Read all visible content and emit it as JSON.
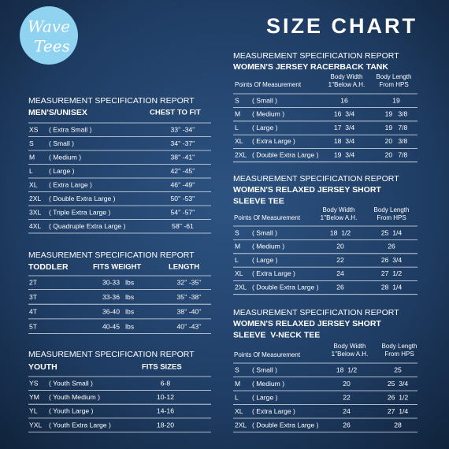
{
  "logo": [
    "Wave",
    "Tees"
  ],
  "title": "SIZE CHART",
  "tables": [
    {
      "report": "MEASUREMENT SPECIFICATION REPORT",
      "heading": [
        "MEN'S/UNISEX"
      ],
      "columns": [
        [
          "CHEST TO FIT"
        ]
      ],
      "rows": [
        [
          "XS",
          "( Extra Small )",
          "33'' -34''"
        ],
        [
          "S",
          "( Small )",
          "34'' -37''"
        ],
        [
          "M",
          "( Medium )",
          "38'' -41''"
        ],
        [
          "L",
          "( Large )",
          "42'' -45''"
        ],
        [
          "XL",
          "( Extra Large )",
          "46'' -49''"
        ],
        [
          "2XL",
          "( Double Extra Large )",
          "50'' -53''"
        ],
        [
          "3XL",
          "( Triple Extra Large )",
          "54'' -57''"
        ],
        [
          "4XL",
          "( Quadruple Extra Large )",
          "58'' -61"
        ]
      ]
    },
    {
      "report": "MEASUREMENT SPECIFICATION REPORT",
      "heading": [
        "TODDLER"
      ],
      "columns": [
        [
          "FITS WEIGHT"
        ],
        [
          "LENGTH"
        ]
      ],
      "rows": [
        [
          "2T",
          "30-33   lbs",
          "32'' -35''"
        ],
        [
          "3T",
          "33-36   lbs",
          "35'' -38''"
        ],
        [
          "4T",
          "36-40   lbs",
          "38'' -40''"
        ],
        [
          "5T",
          "40-45   lbs",
          "40'' -43''"
        ]
      ]
    },
    {
      "report": "MEASUREMENT SPECIFICATION REPORT",
      "heading": [
        "YOUTH"
      ],
      "columns": [
        [
          "FITS SIZES"
        ]
      ],
      "rows": [
        [
          "YS",
          "( Youth Small )",
          "6-8"
        ],
        [
          "YM",
          "( Youth Medium )",
          "10-12"
        ],
        [
          "YL",
          "( Youth Large )",
          "14-16"
        ],
        [
          "YXL",
          "( Youth Extra Large )",
          "18-20"
        ]
      ]
    },
    {
      "report": "MEASUREMENT SPECIFICATION REPORT",
      "heading": [
        "WOMEN'S JERSEY RACERBACK TANK"
      ],
      "columns": [
        [
          "Points Of Measurement"
        ],
        [
          "Body Width",
          "1''Below A.H."
        ],
        [
          "Body Length",
          "From HPS"
        ]
      ],
      "rows": [
        [
          "S",
          "( Small )",
          "16",
          "19"
        ],
        [
          "M",
          "( Medium )",
          "16  3/4",
          "19   3/8"
        ],
        [
          "L",
          "( Large )",
          "17  3/4",
          "19   7/8"
        ],
        [
          "XL",
          "( Extra Large )",
          "18  3/4",
          "20   3/8"
        ],
        [
          "2XL",
          "( Double Extra Large )",
          "19  3/4",
          "20   7/8"
        ]
      ]
    },
    {
      "report": "MEASUREMENT SPECIFICATION REPORT",
      "heading": [
        "WOMEN'S RELAXED JERSEY SHORT",
        "SLEEVE TEE"
      ],
      "columns": [
        [
          "Points Of Measurement"
        ],
        [
          "Body Width",
          "1''Below A.H."
        ],
        [
          "Body Length",
          "From HPS"
        ]
      ],
      "rows": [
        [
          "S",
          "( Small )",
          "18  1/2",
          "25  1/4"
        ],
        [
          "M",
          "( Medium )",
          "20",
          "26"
        ],
        [
          "L",
          "( Large )",
          "22",
          "26  3/4"
        ],
        [
          "XL",
          "( Extra Large )",
          "24",
          "27  1/2"
        ],
        [
          "2XL",
          "( Double Extra Large )",
          "26",
          "28  1/4"
        ]
      ]
    },
    {
      "report": "MEASUREMENT SPECIFICATION REPORT",
      "heading": [
        "WOMEN'S RELAXED JERSEY SHORT",
        "SLEEVE  V-NECK TEE"
      ],
      "columns": [
        [
          "Points Of Measurement"
        ],
        [
          "Body Width",
          "1''Below A.H."
        ],
        [
          "Body Length",
          "From HPS"
        ]
      ],
      "rows": [
        [
          "S",
          "( Small )",
          "18  1/2",
          "25"
        ],
        [
          "M",
          "( Medium )",
          "20",
          "25  3/4"
        ],
        [
          "L",
          "( Large )",
          "22",
          "26  1/2"
        ],
        [
          "XL",
          "( Extra Large )",
          "24",
          "27  1/4"
        ],
        [
          "2XL",
          "( Double Extra Large )",
          "26",
          "28"
        ]
      ]
    }
  ]
}
